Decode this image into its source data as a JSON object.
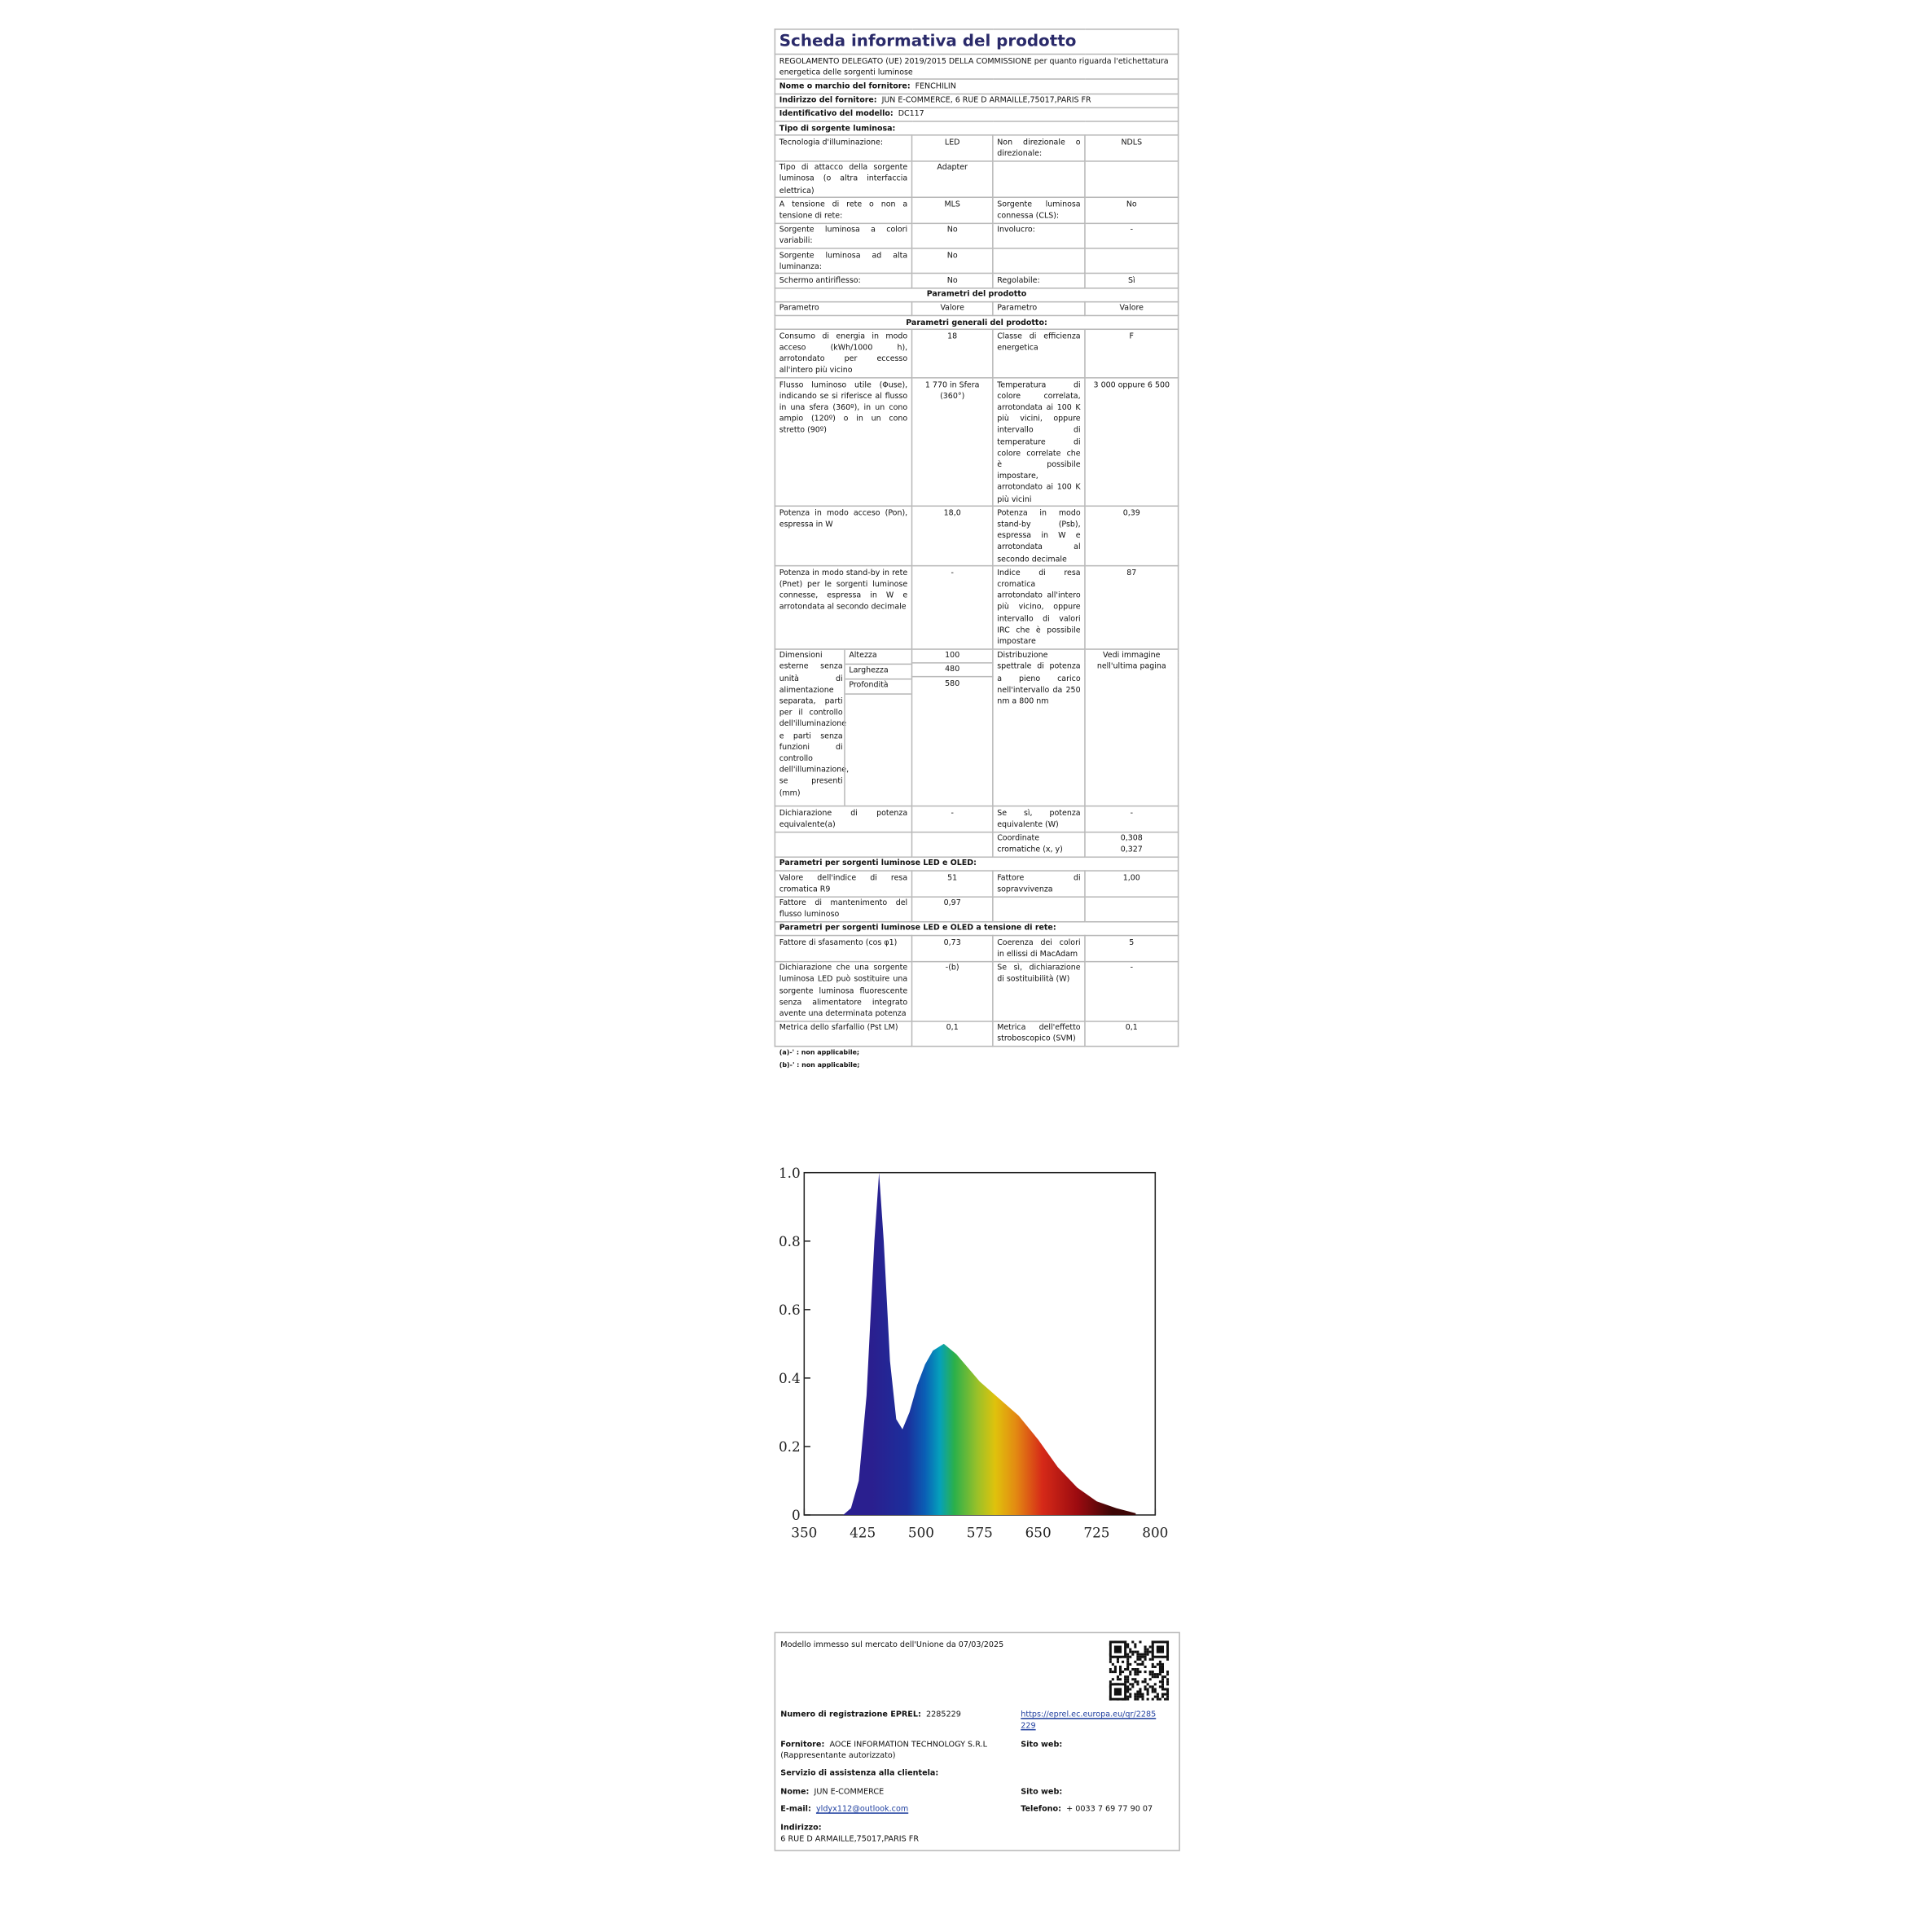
{
  "header": {
    "title": "Scheda informativa del prodotto",
    "regulation": "REGOLAMENTO DELEGATO (UE) 2019/2015 DELLA COMMISSIONE per quanto riguarda l'etichettatura energetica delle sorgenti luminose"
  },
  "info": [
    {
      "label": "Nome o marchio del fornitore:",
      "value": "FENCHILIN"
    },
    {
      "label": "Indirizzo del fornitore:",
      "value": "JUN E-COMMERCE, 6 RUE D ARMAILLE,75017,PARIS FR"
    },
    {
      "label": "Identificativo del modello:",
      "value": "DC117"
    }
  ],
  "table": {
    "rows": [
      [
        "Tipo di sorgente luminosa:"
      ],
      [
        "Tecnologia d'illuminazione:",
        "LED",
        "Non direzionale o direzionale:",
        "NDLS"
      ],
      [
        "Tipo di attacco della sorgente luminosa (o altra interfaccia elettrica)",
        "Adapter",
        null,
        null
      ],
      [
        "A tensione di rete o non a tensione di rete:",
        "MLS",
        "Sorgente luminosa connessa (CLS):",
        "No"
      ],
      [
        "Sorgente luminosa a colori variabili:",
        "No",
        "Involucro:",
        "-"
      ],
      [
        "Sorgente luminosa ad alta luminanza:",
        "No",
        null,
        null
      ],
      [
        "Schermo antiriflesso:",
        "No",
        "Regolabile:",
        "Sì"
      ],
      [
        "Parametri del prodotto"
      ],
      [
        "Parametro",
        "Valore",
        "Parametro",
        "Valore"
      ],
      [
        "Parametri generali del prodotto:"
      ],
      [
        "Consumo di energia in modo acceso (kWh/1000 h), arrotondato per eccesso all'intero più vicino",
        "18",
        "Classe di efficienza energetica",
        "F"
      ],
      [
        "Flusso luminoso utile (Φuse), indicando se si riferisce al flusso in una sfera (360º), in un cono ampio (120º) o in un cono stretto (90º)",
        "1 770 in Sfera (360°)",
        "Temperatura di colore correlata, arrotondata ai 100 K più vicini, oppure intervallo di temperature di colore correlate che è possibile impostare, arrotondato ai 100 K più vicini",
        "3 000 oppure 6 500"
      ],
      [
        "Potenza in modo acceso (Pon), espressa in W",
        "18,0",
        "Potenza in modo stand-by (Psb), espressa in W e arrotondata al secondo decimale",
        "0,39"
      ],
      [
        "Potenza in modo stand-by in rete (Pnet) per le sorgenti luminose connesse, espressa in W e arrotondata al secondo decimale",
        "-",
        "Indice di resa cromatica arrotondato all'intero più vicino, oppure intervallo di valori IRC che è possibile impostare",
        "87"
      ],
      [
        "Dichiarazione di potenza equivalente(a)",
        "-",
        "Se sì, potenza equivalente (W)",
        "-"
      ],
      [
        null,
        null,
        "Coordinate cromatiche (x, y)",
        "0,308\n0,327"
      ],
      [
        "Parametri per sorgenti luminose LED e OLED:"
      ],
      [
        "Valore dell'indice di resa cromatica R9",
        "51",
        "Fattore di sopravvivenza",
        "1,00"
      ],
      [
        "Fattore di mantenimento del flusso luminoso",
        "0,97",
        null,
        null
      ],
      [
        "Parametri per sorgenti luminose LED e OLED a tensione di rete:"
      ],
      [
        "Fattore di sfasamento (cos φ1)",
        "0,73",
        "Coerenza dei colori in ellissi di MacAdam",
        "5"
      ],
      [
        "Dichiarazione che una sorgente luminosa LED può sostituire una sorgente luminosa fluorescente senza alimentatore integrato avente una determinata potenza",
        "-(b)",
        "Se sì, dichiarazione di sostituibilità (W)",
        "-"
      ],
      [
        "Metrica dello sfarfallio (Pst LM)",
        "0,1",
        "Metrica dell'effetto stroboscopico (SVM)",
        "0,1"
      ]
    ]
  },
  "dimensions": {
    "label": "Dimensioni esterne senza unità di alimentazione separata, parti per il controllo dell'illuminazione e parti senza funzioni di controllo dell'illuminazione, se presenti (mm)",
    "items": [
      {
        "name": "Altezza",
        "value": "100"
      },
      {
        "name": "Larghezza",
        "value": "480"
      },
      {
        "name": "Profondità",
        "value": "580"
      }
    ],
    "right_label": "Distribuzione spettrale di potenza a pieno carico nell'intervallo da 250 nm a 800 nm",
    "right_value": "Vedi immagine nell'ultima pagina"
  },
  "footnotes": [
    "(a)-' : non applicabile;",
    "(b)-' : non applicabile;"
  ],
  "chart_data": {
    "type": "area",
    "x": [
      400,
      410,
      420,
      430,
      440,
      446,
      452,
      460,
      468,
      476,
      485,
      495,
      505,
      515,
      529,
      545,
      560,
      575,
      600,
      625,
      650,
      675,
      700,
      725,
      750,
      775
    ],
    "values": [
      0,
      0.02,
      0.1,
      0.35,
      0.8,
      1.0,
      0.8,
      0.45,
      0.28,
      0.25,
      0.3,
      0.38,
      0.44,
      0.48,
      0.5,
      0.47,
      0.43,
      0.39,
      0.34,
      0.29,
      0.22,
      0.14,
      0.08,
      0.04,
      0.02,
      0.005
    ],
    "xlim": [
      350,
      800
    ],
    "ylim": [
      0,
      1
    ],
    "xticks": [
      350,
      425,
      500,
      575,
      650,
      725,
      800
    ],
    "yticks": [
      0,
      0.2,
      0.4,
      0.6,
      0.8,
      {
        "value": 1,
        "label": "1.0"
      }
    ]
  },
  "footer": {
    "market_date": "Modello immesso sul mercato dell'Unione da 07/03/2025",
    "eprel_label": "Numero di registrazione EPREL:",
    "eprel": "2285229",
    "eprel_url": "https://eprel.ec.europa.eu/qr/2285229",
    "supplier_label": "Fornitore:",
    "supplier": "AOCE INFORMATION TECHNOLOGY S.R.L (Rappresentante autorizzato)",
    "website_label": "Sito web:",
    "service_label": "Servizio di assistenza alla clientela:",
    "name_label": "Nome:",
    "name": "JUN E-COMMERCE",
    "website2_label": "Sito web:",
    "email_label": "E-mail:",
    "email": "yldyx112@outlook.com",
    "phone_label": "Telefono:",
    "phone": "+ 0033 7 69 77 90 07",
    "address_label": "Indirizzo:",
    "address": "6 RUE D ARMAILLE,75017,PARIS FR"
  }
}
